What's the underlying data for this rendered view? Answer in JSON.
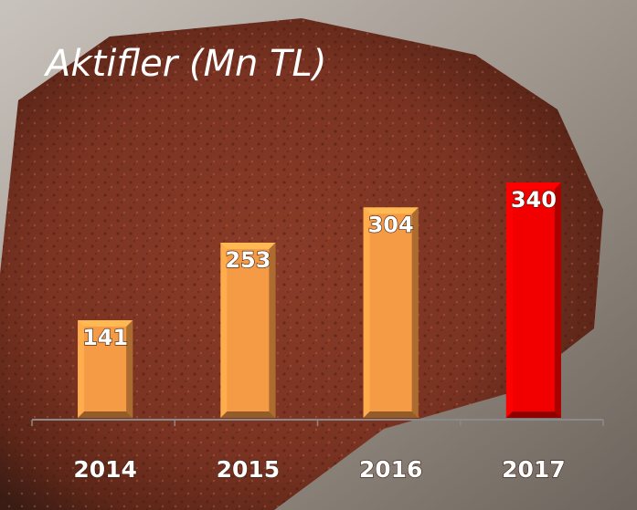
{
  "chart_data": {
    "type": "bar",
    "title": "Aktifler (Mn TL)",
    "categories": [
      "2014",
      "2015",
      "2016",
      "2017"
    ],
    "values": [
      141,
      253,
      304,
      340
    ],
    "colors": [
      "#f59a45",
      "#f59a45",
      "#f59a45",
      "#f20000"
    ]
  }
}
